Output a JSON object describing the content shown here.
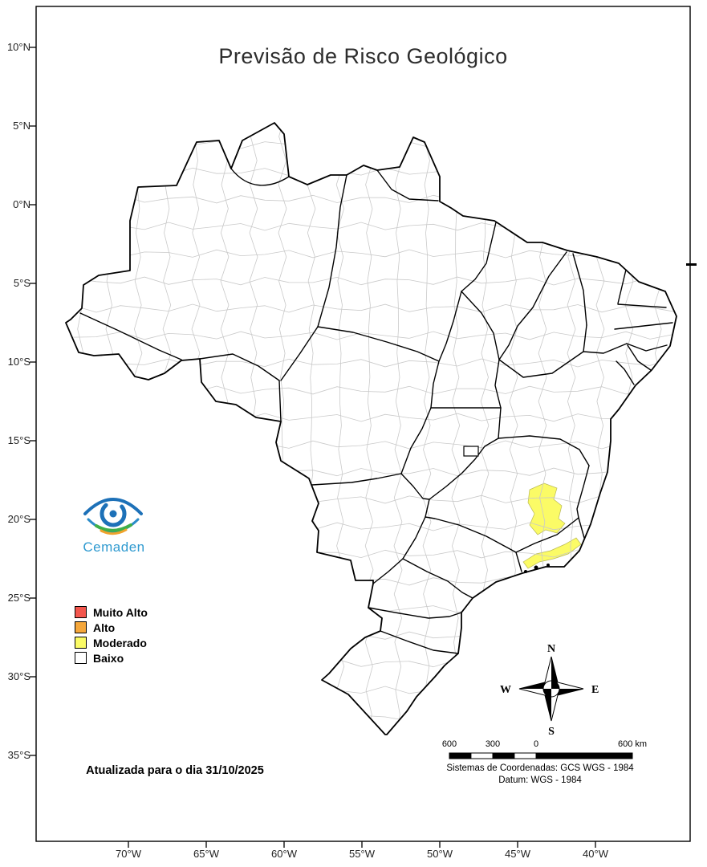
{
  "title": "Previsão de Risco Geológico",
  "logo": {
    "wordmark": "Cemaden"
  },
  "legend": {
    "items": [
      {
        "label": "Muito Alto",
        "color": "#f3564d"
      },
      {
        "label": "Alto",
        "color": "#f5a73b"
      },
      {
        "label": "Moderado",
        "color": "#fbfb66"
      },
      {
        "label": "Baixo",
        "color": "#ffffff"
      }
    ]
  },
  "map": {
    "highlight_level": "Moderado",
    "highlight_color": "#fbfb66",
    "country": "Brasil"
  },
  "compass": {
    "n": "N",
    "s": "S",
    "e": "E",
    "w": "W"
  },
  "scale_bar": {
    "labels": [
      "600",
      "300",
      "0",
      "600 km"
    ]
  },
  "coordinate_system": {
    "line1": "Sistemas de Coordenadas: GCS WGS - 1984",
    "line2": "Datum: WGS - 1984"
  },
  "update_note": "Atualizada para o dia 31/10/2025",
  "axes": {
    "lat": [
      "10°N",
      "5°N",
      "0°N",
      "5°S",
      "10°S",
      "15°S",
      "20°S",
      "25°S",
      "30°S",
      "35°S"
    ],
    "lon": [
      "70°W",
      "65°W",
      "60°W",
      "55°W",
      "50°W",
      "45°W",
      "40°W"
    ]
  }
}
